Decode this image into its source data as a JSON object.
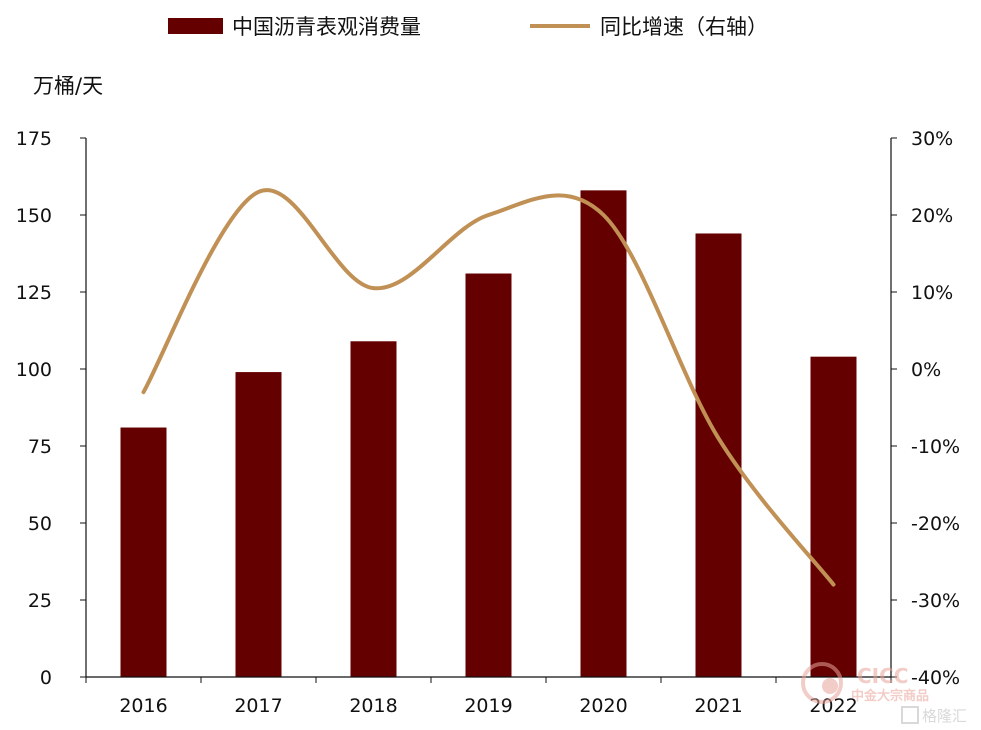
{
  "chart_data": {
    "type": "bar+line",
    "categories": [
      "2016",
      "2017",
      "2018",
      "2019",
      "2020",
      "2021",
      "2022"
    ],
    "series": [
      {
        "name": "中国沥青表观消费量",
        "type": "bar",
        "axis": "left",
        "color": "#650000",
        "values": [
          81,
          99,
          109,
          131,
          158,
          144,
          104
        ]
      },
      {
        "name": "同比增速（右轴）",
        "type": "line",
        "axis": "right",
        "color": "#C09055",
        "values": [
          -3,
          23,
          10.5,
          20,
          20,
          -9,
          -28
        ]
      }
    ],
    "ylabel": "万桶/天",
    "ylim": [
      0,
      175
    ],
    "yticks": [
      "0",
      "25",
      "50",
      "75",
      "100",
      "125",
      "150",
      "175"
    ],
    "y2lim": [
      -40,
      30
    ],
    "y2ticks": [
      "-40%",
      "-30%",
      "-20%",
      "-10%",
      "0%",
      "10%",
      "20%",
      "30%"
    ],
    "legend_position": "top",
    "grid": false
  },
  "watermark": {
    "brand": "CICC",
    "brand_cn": "中金大宗商品",
    "platform": "格隆汇"
  }
}
